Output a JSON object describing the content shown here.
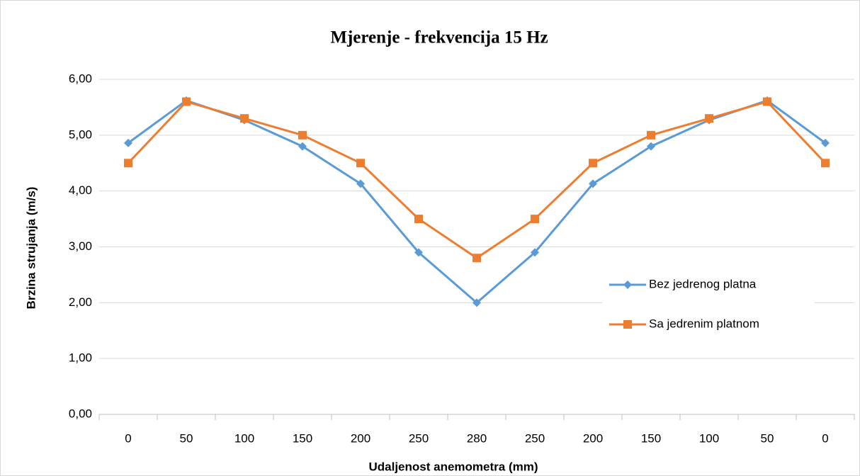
{
  "chart_data": {
    "type": "line",
    "title": "Mjerenje - frekvencija 15 Hz",
    "x_label": "Udaljenost anemometra (mm)",
    "y_label": "Brzina strujanja (m/s)",
    "categories": [
      "0",
      "50",
      "100",
      "150",
      "200",
      "250",
      "280",
      "250",
      "200",
      "150",
      "100",
      "50",
      "0"
    ],
    "series": [
      {
        "name": "Bez jedrenog platna",
        "color": "#5b9bd5",
        "marker": "diamond",
        "values": [
          4.86,
          5.62,
          5.27,
          4.8,
          4.13,
          2.9,
          2.0,
          2.9,
          4.13,
          4.8,
          5.27,
          5.62,
          4.86
        ]
      },
      {
        "name": "Sa jedrenim platnom",
        "color": "#ed7d31",
        "marker": "square",
        "values": [
          4.5,
          5.6,
          5.3,
          5.0,
          4.5,
          3.5,
          2.8,
          3.5,
          4.5,
          5.0,
          5.3,
          5.6,
          4.5
        ]
      }
    ],
    "ylim": [
      0,
      6
    ],
    "yticks": [
      {
        "value": 0,
        "label": "0,00"
      },
      {
        "value": 1,
        "label": "1,00"
      },
      {
        "value": 2,
        "label": "2,00"
      },
      {
        "value": 3,
        "label": "3,00"
      },
      {
        "value": 4,
        "label": "4,00"
      },
      {
        "value": 5,
        "label": "5,00"
      },
      {
        "value": 6,
        "label": "6,00"
      }
    ],
    "grid": true,
    "legend": "right"
  }
}
